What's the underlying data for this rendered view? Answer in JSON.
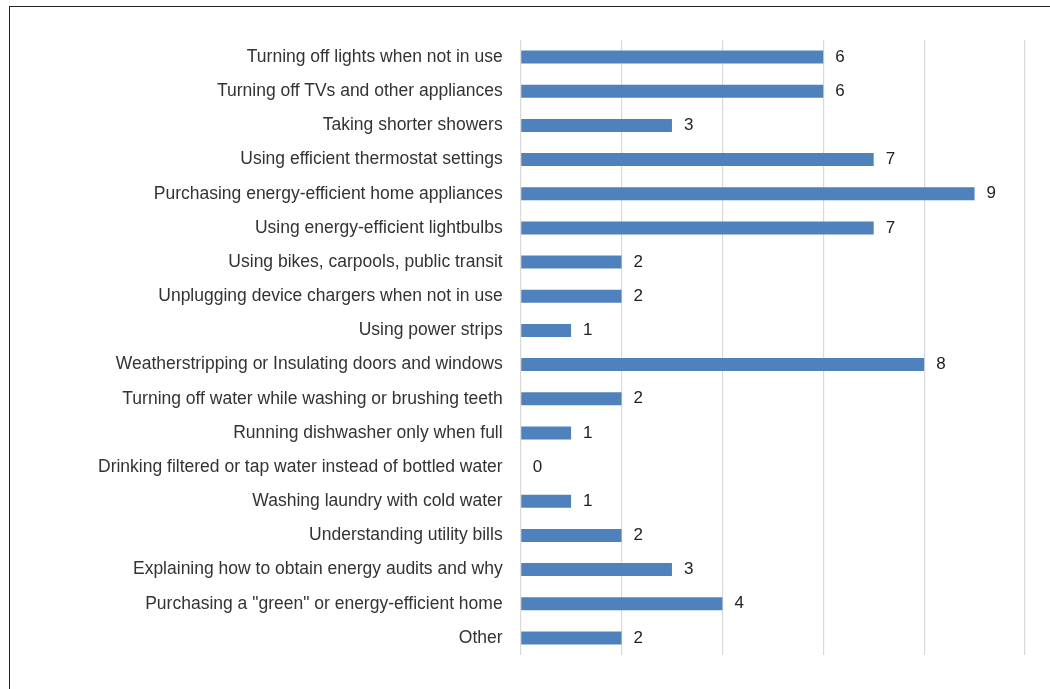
{
  "chart_data": {
    "type": "bar",
    "orientation": "horizontal",
    "categories": [
      "Turning off lights when not in use",
      "Turning off TVs and other appliances",
      "Taking shorter showers",
      "Using efficient thermostat settings",
      "Purchasing energy-efficient home appliances",
      "Using energy-efficient lightbulbs",
      "Using bikes, carpools, public transit",
      "Unplugging device chargers when not in use",
      "Using power strips",
      "Weatherstripping or Insulating doors and windows",
      "Turning off water while washing or brushing teeth",
      "Running dishwasher only when full",
      "Drinking filtered or tap water instead of bottled water",
      "Washing laundry with cold water",
      "Understanding utility bills",
      "Explaining how to obtain energy audits and why",
      "Purchasing a \"green\" or energy-efficient home",
      "Other"
    ],
    "values": [
      6,
      6,
      3,
      7,
      9,
      7,
      2,
      2,
      1,
      8,
      2,
      1,
      0,
      1,
      2,
      3,
      4,
      2
    ],
    "color": "#4f81bd",
    "xlim": [
      0,
      10
    ],
    "xticks": [
      {
        "value": 0,
        "label": null
      },
      {
        "value": 2,
        "label": null
      },
      {
        "value": 4,
        "label": null
      },
      {
        "value": 6,
        "label": null
      },
      {
        "value": 8,
        "label": null
      },
      {
        "value": 10,
        "label": null
      }
    ],
    "tick_labels": "y",
    "grid": "x",
    "data_labels": true,
    "legend": false
  }
}
